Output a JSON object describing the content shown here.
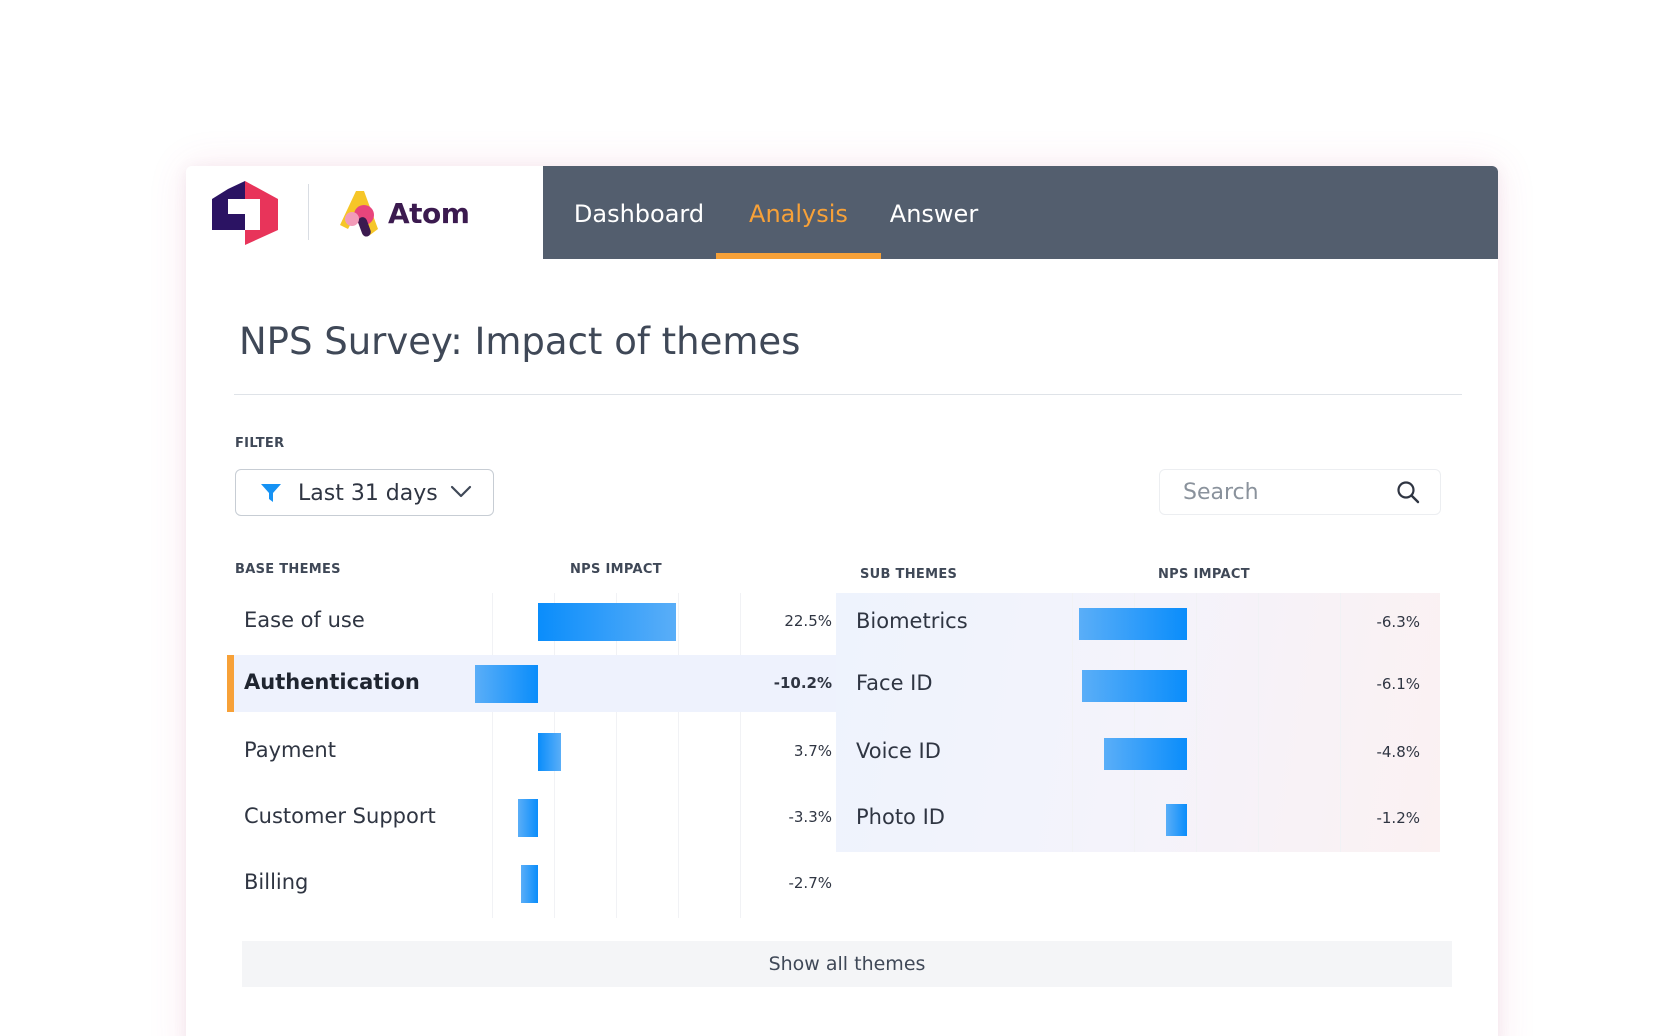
{
  "header": {
    "brand_name": "Atom",
    "nav": [
      {
        "label": "Dashboard",
        "active": false
      },
      {
        "label": "Analysis",
        "active": true
      },
      {
        "label": "Answer",
        "active": false
      }
    ]
  },
  "colors": {
    "nav_bg": "#535e6e",
    "accent": "#f7a138",
    "bar": "#0a8dfb",
    "selected_row": "#eef2fd"
  },
  "page": {
    "title": "NPS Survey: Impact of themes"
  },
  "filter": {
    "label": "FILTER",
    "value": "Last 31 days",
    "icon": "funnel-icon"
  },
  "search": {
    "placeholder": "Search",
    "value": ""
  },
  "base_themes": {
    "header_theme": "BASE THEMES",
    "header_impact": "NPS IMPACT",
    "rows": [
      {
        "label": "Ease of use",
        "impact": 22.5,
        "display": "22.5%",
        "selected": false
      },
      {
        "label": "Authentication",
        "impact": -10.2,
        "display": "-10.2%",
        "selected": true
      },
      {
        "label": "Payment",
        "impact": 3.7,
        "display": "3.7%",
        "selected": false
      },
      {
        "label": "Customer Support",
        "impact": -3.3,
        "display": "-3.3%",
        "selected": false
      },
      {
        "label": "Billing",
        "impact": -2.7,
        "display": "-2.7%",
        "selected": false
      }
    ]
  },
  "sub_themes": {
    "header_theme": "SUB THEMES",
    "header_impact": "NPS IMPACT",
    "rows": [
      {
        "label": "Biometrics",
        "impact": -6.3,
        "display": "-6.3%"
      },
      {
        "label": "Face ID",
        "impact": -6.1,
        "display": "-6.1%"
      },
      {
        "label": "Voice ID",
        "impact": -4.8,
        "display": "-4.8%"
      },
      {
        "label": "Photo ID",
        "impact": -1.2,
        "display": "-1.2%"
      }
    ]
  },
  "footer": {
    "show_all_label": "Show all themes"
  }
}
